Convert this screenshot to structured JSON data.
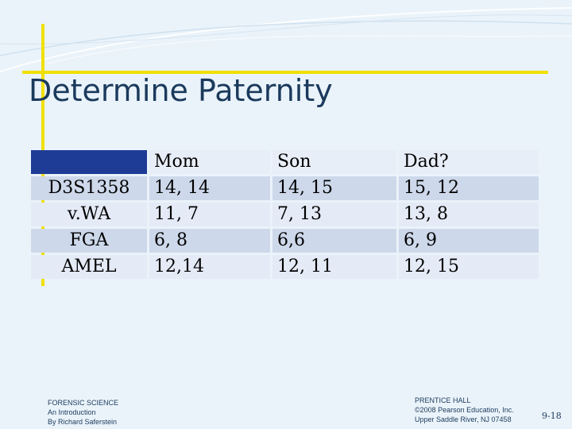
{
  "slide": {
    "title": "Determine Paternity"
  },
  "table": {
    "headers": [
      "",
      "Mom",
      "Son",
      "Dad?"
    ],
    "rows": [
      {
        "locus": "D3S1358",
        "mom": "14, 14",
        "son": "14, 15",
        "dad": "15, 12"
      },
      {
        "locus": "v.WA",
        "mom": "11, 7",
        "son": "7, 13",
        "dad": "13, 8"
      },
      {
        "locus": "FGA",
        "mom": "6, 8",
        "son": "6,6",
        "dad": "6, 9"
      },
      {
        "locus": "AMEL",
        "mom": "12,14",
        "son": "12, 11",
        "dad": "12, 15"
      }
    ]
  },
  "footer": {
    "left": [
      "FORENSIC SCIENCE",
      "An Introduction",
      "By Richard Saferstein"
    ],
    "right": [
      "PRENTICE HALL",
      "©2008 Pearson Education, Inc.",
      "Upper Saddle River, NJ 07458"
    ],
    "page": "9-18"
  },
  "colors": {
    "accent_line": "#f0e000",
    "title": "#1b3a5c",
    "header_band": "#1e3c96",
    "row_dark": "#cdd8ea",
    "row_light": "#e4eaf6"
  }
}
